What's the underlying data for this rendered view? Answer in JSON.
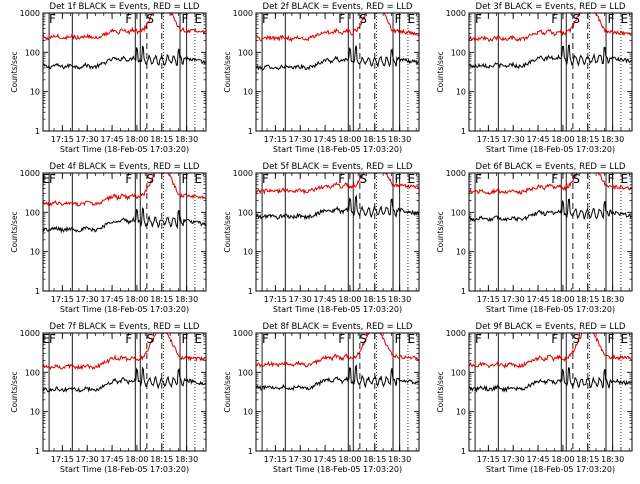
{
  "figure": {
    "rows": 3,
    "cols": 3
  },
  "colors": {
    "events": "#000000",
    "lld": "#dd0000",
    "background": "#ffffff"
  },
  "chart_data": [
    {
      "type": "line",
      "title": "Det 1f BLACK = Events, RED = LLD",
      "xlabel": "Start Time (18-Feb-05 17:03:20)",
      "ylabel": "Counts/sec",
      "x_ticks": [
        "17:15",
        "17:30",
        "17:45",
        "18:00",
        "18:15",
        "18:30"
      ],
      "y_ticks": [
        "1",
        "10",
        "100",
        "1000"
      ],
      "xlim_min": [
        3.33,
        101.67
      ],
      "ylim": [
        1,
        1000
      ],
      "y_scale": "log",
      "solid_lines_min": [
        7,
        21,
        59,
        62,
        86,
        90
      ],
      "dashed_lines_min": [
        66,
        75
      ],
      "dotted_lines_min": [
        76,
        95
      ],
      "markers": [
        {
          "label": "F",
          "x_min": 9
        },
        {
          "label": "F",
          "x_min": 55
        },
        {
          "label": "S",
          "x_min": 68
        },
        {
          "label": "F",
          "x_min": 89
        },
        {
          "label": "E",
          "x_min": 97
        }
      ],
      "series": [
        {
          "name": "Events",
          "color": "#000000",
          "base": 48,
          "rise": 1.5,
          "trend": 0.75
        },
        {
          "name": "LLD",
          "color": "#dd0000",
          "base": 265,
          "rise": 1.4,
          "trend": 0.85
        }
      ]
    },
    {
      "type": "line",
      "title": "Det 2f BLACK = Events, RED = LLD",
      "xlabel": "Start Time (18-Feb-05 17:03:20)",
      "ylabel": "Counts/sec",
      "x_ticks": [
        "17:15",
        "17:30",
        "17:45",
        "18:00",
        "18:15",
        "18:30"
      ],
      "y_ticks": [
        "1",
        "10",
        "100",
        "1000"
      ],
      "xlim_min": [
        3.33,
        101.67
      ],
      "ylim": [
        1,
        1000
      ],
      "y_scale": "log",
      "solid_lines_min": [
        7,
        21,
        59,
        62,
        86,
        90
      ],
      "dashed_lines_min": [
        66,
        75
      ],
      "dotted_lines_min": [
        76,
        95
      ],
      "markers": [
        {
          "label": "F",
          "x_min": 9
        },
        {
          "label": "F",
          "x_min": 55
        },
        {
          "label": "S",
          "x_min": 68
        },
        {
          "label": "F",
          "x_min": 89
        },
        {
          "label": "E",
          "x_min": 97
        }
      ],
      "series": [
        {
          "name": "Events",
          "color": "#000000",
          "base": 45,
          "rise": 1.5,
          "trend": 0.8
        },
        {
          "name": "LLD",
          "color": "#dd0000",
          "base": 250,
          "rise": 1.4,
          "trend": 0.85
        }
      ]
    },
    {
      "type": "line",
      "title": "Det 3f BLACK = Events, RED = LLD",
      "xlabel": "Start Time (18-Feb-05 17:03:20)",
      "ylabel": "Counts/sec",
      "x_ticks": [
        "17:15",
        "17:30",
        "17:45",
        "18:00",
        "18:15",
        "18:30"
      ],
      "y_ticks": [
        "1",
        "10",
        "100",
        "1000"
      ],
      "xlim_min": [
        3.33,
        101.67
      ],
      "ylim": [
        1,
        1000
      ],
      "y_scale": "log",
      "solid_lines_min": [
        7,
        21,
        59,
        62,
        86,
        90
      ],
      "dashed_lines_min": [
        66,
        75
      ],
      "dotted_lines_min": [
        76,
        95
      ],
      "markers": [
        {
          "label": "F",
          "x_min": 9
        },
        {
          "label": "F",
          "x_min": 55
        },
        {
          "label": "S",
          "x_min": 68
        },
        {
          "label": "F",
          "x_min": 89
        },
        {
          "label": "E",
          "x_min": 97
        }
      ],
      "series": [
        {
          "name": "Events",
          "color": "#000000",
          "base": 50,
          "rise": 1.5,
          "trend": 0.75
        },
        {
          "name": "LLD",
          "color": "#dd0000",
          "base": 240,
          "rise": 1.4,
          "trend": 0.85
        }
      ]
    },
    {
      "type": "line",
      "title": "Det 4f BLACK = Events, RED = LLD",
      "xlabel": "Start Time (18-Feb-05 17:03:20)",
      "ylabel": "Counts/sec",
      "x_ticks": [
        "17:15",
        "17:30",
        "17:45",
        "18:00",
        "18:15",
        "18:30"
      ],
      "y_ticks": [
        "1",
        "10",
        "100",
        "1000"
      ],
      "xlim_min": [
        3.33,
        101.67
      ],
      "ylim": [
        1,
        1000
      ],
      "y_scale": "log",
      "solid_lines_min": [
        7,
        21,
        59,
        62,
        86,
        90
      ],
      "dashed_lines_min": [
        66,
        75
      ],
      "dotted_lines_min": [
        76,
        95
      ],
      "markers": [
        {
          "label": "E",
          "x_min": 5
        },
        {
          "label": "F",
          "x_min": 9
        },
        {
          "label": "F",
          "x_min": 55
        },
        {
          "label": "S",
          "x_min": 68
        },
        {
          "label": "F",
          "x_min": 89
        },
        {
          "label": "E",
          "x_min": 97
        }
      ],
      "series": [
        {
          "name": "Events",
          "color": "#000000",
          "base": 40,
          "rise": 1.6,
          "trend": 0.75
        },
        {
          "name": "LLD",
          "color": "#dd0000",
          "base": 180,
          "rise": 1.5,
          "trend": 0.85
        }
      ]
    },
    {
      "type": "line",
      "title": "Det 5f BLACK = Events, RED = LLD",
      "xlabel": "Start Time (18-Feb-05 17:03:20)",
      "ylabel": "Counts/sec",
      "x_ticks": [
        "17:15",
        "17:30",
        "17:45",
        "18:00",
        "18:15",
        "18:30"
      ],
      "y_ticks": [
        "1",
        "10",
        "100",
        "1000"
      ],
      "xlim_min": [
        3.33,
        101.67
      ],
      "ylim": [
        1,
        1000
      ],
      "y_scale": "log",
      "solid_lines_min": [
        7,
        21,
        59,
        62,
        86,
        90
      ],
      "dashed_lines_min": [
        66,
        75
      ],
      "dotted_lines_min": [
        76,
        95
      ],
      "markers": [
        {
          "label": "F",
          "x_min": 9
        },
        {
          "label": "F",
          "x_min": 55
        },
        {
          "label": "S",
          "x_min": 68
        },
        {
          "label": "F",
          "x_min": 89
        },
        {
          "label": "E",
          "x_min": 97
        }
      ],
      "series": [
        {
          "name": "Events",
          "color": "#000000",
          "base": 85,
          "rise": 1.4,
          "trend": 0.75
        },
        {
          "name": "LLD",
          "color": "#dd0000",
          "base": 380,
          "rise": 1.3,
          "trend": 0.85
        }
      ]
    },
    {
      "type": "line",
      "title": "Det 6f BLACK = Events, RED = LLD",
      "xlabel": "Start Time (18-Feb-05 17:03:20)",
      "ylabel": "Counts/sec",
      "x_ticks": [
        "17:15",
        "17:30",
        "17:45",
        "18:00",
        "18:15",
        "18:30"
      ],
      "y_ticks": [
        "1",
        "10",
        "100",
        "1000"
      ],
      "xlim_min": [
        3.33,
        101.67
      ],
      "ylim": [
        1,
        1000
      ],
      "y_scale": "log",
      "solid_lines_min": [
        7,
        21,
        59,
        62,
        86,
        90
      ],
      "dashed_lines_min": [
        66,
        75
      ],
      "dotted_lines_min": [
        76,
        95
      ],
      "markers": [
        {
          "label": "F",
          "x_min": 9
        },
        {
          "label": "F",
          "x_min": 55
        },
        {
          "label": "S",
          "x_min": 68
        },
        {
          "label": "F",
          "x_min": 89
        },
        {
          "label": "E",
          "x_min": 97
        }
      ],
      "series": [
        {
          "name": "Events",
          "color": "#000000",
          "base": 75,
          "rise": 1.4,
          "trend": 0.75
        },
        {
          "name": "LLD",
          "color": "#dd0000",
          "base": 360,
          "rise": 1.3,
          "trend": 0.85
        }
      ]
    },
    {
      "type": "line",
      "title": "Det 7f BLACK = Events, RED = LLD",
      "xlabel": "Start Time (18-Feb-05 17:03:20)",
      "ylabel": "Counts/sec",
      "x_ticks": [
        "17:15",
        "17:30",
        "17:45",
        "18:00",
        "18:15",
        "18:30"
      ],
      "y_ticks": [
        "1",
        "10",
        "100",
        "1000"
      ],
      "xlim_min": [
        3.33,
        101.67
      ],
      "ylim": [
        1,
        1000
      ],
      "y_scale": "log",
      "solid_lines_min": [
        7,
        21,
        59,
        62,
        86,
        90
      ],
      "dashed_lines_min": [
        66,
        75
      ],
      "dotted_lines_min": [
        76,
        95
      ],
      "markers": [
        {
          "label": "E",
          "x_min": 5
        },
        {
          "label": "F",
          "x_min": 9
        },
        {
          "label": "F",
          "x_min": 55
        },
        {
          "label": "S",
          "x_min": 68
        },
        {
          "label": "F",
          "x_min": 89
        },
        {
          "label": "E",
          "x_min": 97
        }
      ],
      "series": [
        {
          "name": "Events",
          "color": "#000000",
          "base": 40,
          "rise": 1.6,
          "trend": 0.8
        },
        {
          "name": "LLD",
          "color": "#dd0000",
          "base": 150,
          "rise": 1.6,
          "trend": 0.9
        }
      ]
    },
    {
      "type": "line",
      "title": "Det 8f BLACK = Events, RED = LLD",
      "xlabel": "Start Time (18-Feb-05 17:03:20)",
      "ylabel": "Counts/sec",
      "x_ticks": [
        "17:15",
        "17:30",
        "17:45",
        "18:00",
        "18:15",
        "18:30"
      ],
      "y_ticks": [
        "1",
        "10",
        "100",
        "1000"
      ],
      "xlim_min": [
        3.33,
        101.67
      ],
      "ylim": [
        1,
        1000
      ],
      "y_scale": "log",
      "solid_lines_min": [
        7,
        21,
        59,
        62,
        86,
        90
      ],
      "dashed_lines_min": [
        66,
        75
      ],
      "dotted_lines_min": [
        76,
        95
      ],
      "markers": [
        {
          "label": "F",
          "x_min": 9
        },
        {
          "label": "F",
          "x_min": 55
        },
        {
          "label": "S",
          "x_min": 68
        },
        {
          "label": "F",
          "x_min": 89
        },
        {
          "label": "E",
          "x_min": 97
        }
      ],
      "series": [
        {
          "name": "Events",
          "color": "#000000",
          "base": 45,
          "rise": 1.5,
          "trend": 0.8
        },
        {
          "name": "LLD",
          "color": "#dd0000",
          "base": 170,
          "rise": 1.5,
          "trend": 0.9
        }
      ]
    },
    {
      "type": "line",
      "title": "Det 9f BLACK = Events, RED = LLD",
      "xlabel": "Start Time (18-Feb-05 17:03:20)",
      "ylabel": "Counts/sec",
      "x_ticks": [
        "17:15",
        "17:30",
        "17:45",
        "18:00",
        "18:15",
        "18:30"
      ],
      "y_ticks": [
        "1",
        "10",
        "100",
        "1000"
      ],
      "xlim_min": [
        3.33,
        101.67
      ],
      "ylim": [
        1,
        1000
      ],
      "y_scale": "log",
      "solid_lines_min": [
        7,
        21,
        59,
        62,
        86,
        90
      ],
      "dashed_lines_min": [
        66,
        75
      ],
      "dotted_lines_min": [
        76,
        95
      ],
      "markers": [
        {
          "label": "F",
          "x_min": 9
        },
        {
          "label": "F",
          "x_min": 55
        },
        {
          "label": "S",
          "x_min": 68
        },
        {
          "label": "F",
          "x_min": 89
        },
        {
          "label": "E",
          "x_min": 97
        }
      ],
      "series": [
        {
          "name": "Events",
          "color": "#000000",
          "base": 42,
          "rise": 1.5,
          "trend": 0.8
        },
        {
          "name": "LLD",
          "color": "#dd0000",
          "base": 165,
          "rise": 1.5,
          "trend": 0.9
        }
      ]
    }
  ]
}
